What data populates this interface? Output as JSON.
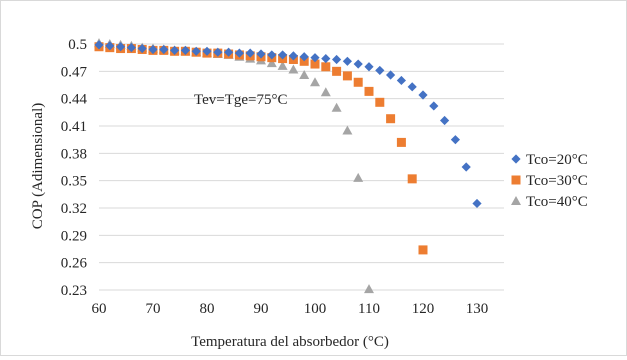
{
  "chart_data": {
    "type": "scatter",
    "title": "",
    "xlabel": "Temperatura del absorbedor (°C)",
    "ylabel": "COP (Adimensional)",
    "xlim": [
      60,
      135
    ],
    "ylim": [
      0.23,
      0.5
    ],
    "xticks": [
      60,
      70,
      80,
      90,
      100,
      110,
      120,
      130
    ],
    "yticks": [
      0.5,
      0.47,
      0.44,
      0.41,
      0.38,
      0.35,
      0.32,
      0.29,
      0.26,
      0.23
    ],
    "xtick_labels": [
      "60",
      "70",
      "80",
      "90",
      "100",
      "110",
      "120",
      "130"
    ],
    "ytick_labels": [
      "0.5",
      "0.47",
      "0.44",
      "0.41",
      "0.38",
      "0.35",
      "0.32",
      "0.29",
      "0.26",
      "0.23"
    ],
    "grid": "horizontal",
    "legend_position": "right",
    "annotation": "Tev=Tge=75°C",
    "series": [
      {
        "name": "Tco=20°C",
        "marker": "diamond",
        "color": "#4472c4",
        "x": [
          60,
          62,
          64,
          66,
          68,
          70,
          72,
          74,
          76,
          78,
          80,
          82,
          84,
          86,
          88,
          90,
          92,
          94,
          96,
          98,
          100,
          102,
          104,
          106,
          108,
          110,
          112,
          114,
          116,
          118,
          120,
          122,
          124,
          126,
          128,
          130
        ],
        "y": [
          0.499,
          0.498,
          0.497,
          0.496,
          0.495,
          0.494,
          0.494,
          0.493,
          0.493,
          0.492,
          0.492,
          0.491,
          0.491,
          0.49,
          0.49,
          0.489,
          0.488,
          0.488,
          0.487,
          0.486,
          0.485,
          0.484,
          0.483,
          0.481,
          0.478,
          0.475,
          0.471,
          0.466,
          0.46,
          0.453,
          0.444,
          0.432,
          0.416,
          0.395,
          0.365,
          0.325
        ]
      },
      {
        "name": "Tco=30°C",
        "marker": "square",
        "color": "#ed7d31",
        "x": [
          60,
          62,
          64,
          66,
          68,
          70,
          72,
          74,
          76,
          78,
          80,
          82,
          84,
          86,
          88,
          90,
          92,
          94,
          96,
          98,
          100,
          102,
          104,
          106,
          108,
          110,
          112,
          114,
          116,
          118,
          120
        ],
        "y": [
          0.497,
          0.496,
          0.495,
          0.495,
          0.494,
          0.493,
          0.493,
          0.492,
          0.492,
          0.491,
          0.49,
          0.49,
          0.489,
          0.488,
          0.487,
          0.486,
          0.485,
          0.484,
          0.483,
          0.481,
          0.478,
          0.475,
          0.47,
          0.465,
          0.458,
          0.448,
          0.436,
          0.418,
          0.392,
          0.352,
          0.274
        ]
      },
      {
        "name": "Tco=40°C",
        "marker": "triangle",
        "color": "#a5a5a5",
        "x": [
          60,
          62,
          64,
          66,
          68,
          70,
          72,
          74,
          76,
          78,
          80,
          82,
          84,
          86,
          88,
          90,
          92,
          94,
          96,
          98,
          100,
          102,
          104,
          106,
          108,
          110
        ],
        "y": [
          0.501,
          0.5,
          0.499,
          0.498,
          0.496,
          0.495,
          0.494,
          0.493,
          0.492,
          0.491,
          0.49,
          0.489,
          0.488,
          0.486,
          0.484,
          0.482,
          0.479,
          0.476,
          0.472,
          0.466,
          0.458,
          0.447,
          0.43,
          0.405,
          0.353,
          0.231
        ]
      }
    ]
  }
}
